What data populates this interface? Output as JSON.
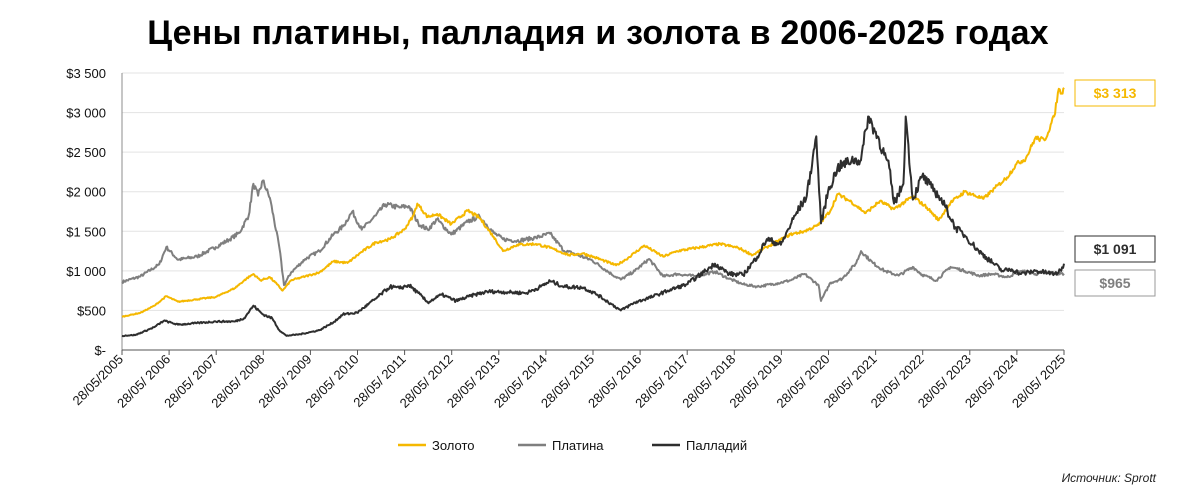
{
  "title": "Цены платины, палладия и золота в 2006-2025 годах",
  "source": "Источник: Sprott",
  "colors": {
    "gold": "#F5B800",
    "platinum": "#7F7F7F",
    "palladium": "#2E2E2E",
    "grid": "#E3E3E3"
  },
  "chart_data": {
    "type": "line",
    "title": "Цены платины, палладия и золота в 2006-2025 годах",
    "ylim": [
      0,
      3500
    ],
    "y_ticks": [
      {
        "value": 0,
        "label": "$-"
      },
      {
        "value": 500,
        "label": "$500"
      },
      {
        "value": 1000,
        "label": "$1 000"
      },
      {
        "value": 1500,
        "label": "$1 500"
      },
      {
        "value": 2000,
        "label": "$2 000"
      },
      {
        "value": 2500,
        "label": "$2 500"
      },
      {
        "value": 3000,
        "label": "$3 000"
      },
      {
        "value": 3500,
        "label": "$3 500"
      }
    ],
    "xlim": [
      2005.41,
      2025.41
    ],
    "x_ticks": [
      {
        "value": 2005.41,
        "label": "28/05/2005"
      },
      {
        "value": 2006.41,
        "label": "28/05/ 2006"
      },
      {
        "value": 2007.41,
        "label": "28/05/ 2007"
      },
      {
        "value": 2008.41,
        "label": "28/05/ 2008"
      },
      {
        "value": 2009.41,
        "label": "28/05/ 2009"
      },
      {
        "value": 2010.41,
        "label": "28/05/ 2010"
      },
      {
        "value": 2011.41,
        "label": "28/05/ 2011"
      },
      {
        "value": 2012.41,
        "label": "28/05/ 2012"
      },
      {
        "value": 2013.41,
        "label": "28/05/ 2013"
      },
      {
        "value": 2014.41,
        "label": "28/05/ 2014"
      },
      {
        "value": 2015.41,
        "label": "28/05/ 2015"
      },
      {
        "value": 2016.41,
        "label": "28/05/ 2016"
      },
      {
        "value": 2017.41,
        "label": "28/05/ 2017"
      },
      {
        "value": 2018.41,
        "label": "28/05/ 2018"
      },
      {
        "value": 2019.41,
        "label": "28/05/ 2019"
      },
      {
        "value": 2020.41,
        "label": "28/05/ 2020"
      },
      {
        "value": 2021.41,
        "label": "28/05/ 2021"
      },
      {
        "value": 2022.41,
        "label": "28/05/ 2022"
      },
      {
        "value": 2023.41,
        "label": "28/05/ 2023"
      },
      {
        "value": 2024.41,
        "label": "28/05/ 2024"
      },
      {
        "value": 2025.41,
        "label": "28/05/ 2025"
      }
    ],
    "grid": true,
    "legend_position": "bottom",
    "series": [
      {
        "name": "Золото",
        "color": "#F5B800",
        "end_label": "$3 313",
        "points": [
          [
            2005.41,
            420
          ],
          [
            2005.8,
            470
          ],
          [
            2006.1,
            560
          ],
          [
            2006.35,
            680
          ],
          [
            2006.6,
            610
          ],
          [
            2007.0,
            640
          ],
          [
            2007.4,
            670
          ],
          [
            2007.8,
            780
          ],
          [
            2008.05,
            900
          ],
          [
            2008.2,
            960
          ],
          [
            2008.35,
            880
          ],
          [
            2008.55,
            920
          ],
          [
            2008.7,
            830
          ],
          [
            2008.82,
            750
          ],
          [
            2009.0,
            880
          ],
          [
            2009.3,
            930
          ],
          [
            2009.6,
            980
          ],
          [
            2009.9,
            1120
          ],
          [
            2010.2,
            1100
          ],
          [
            2010.5,
            1240
          ],
          [
            2010.8,
            1360
          ],
          [
            2011.1,
            1400
          ],
          [
            2011.4,
            1520
          ],
          [
            2011.6,
            1700
          ],
          [
            2011.68,
            1850
          ],
          [
            2011.9,
            1680
          ],
          [
            2012.1,
            1720
          ],
          [
            2012.4,
            1590
          ],
          [
            2012.75,
            1760
          ],
          [
            2013.0,
            1670
          ],
          [
            2013.3,
            1430
          ],
          [
            2013.5,
            1250
          ],
          [
            2013.8,
            1330
          ],
          [
            2014.2,
            1340
          ],
          [
            2014.5,
            1290
          ],
          [
            2014.9,
            1200
          ],
          [
            2015.2,
            1220
          ],
          [
            2015.5,
            1160
          ],
          [
            2015.9,
            1070
          ],
          [
            2016.1,
            1140
          ],
          [
            2016.5,
            1320
          ],
          [
            2016.9,
            1180
          ],
          [
            2017.2,
            1250
          ],
          [
            2017.7,
            1300
          ],
          [
            2018.1,
            1340
          ],
          [
            2018.5,
            1290
          ],
          [
            2018.8,
            1200
          ],
          [
            2019.1,
            1300
          ],
          [
            2019.6,
            1460
          ],
          [
            2019.9,
            1500
          ],
          [
            2020.2,
            1580
          ],
          [
            2020.45,
            1760
          ],
          [
            2020.6,
            1970
          ],
          [
            2020.9,
            1870
          ],
          [
            2021.2,
            1730
          ],
          [
            2021.5,
            1880
          ],
          [
            2021.8,
            1780
          ],
          [
            2022.2,
            1940
          ],
          [
            2022.5,
            1800
          ],
          [
            2022.75,
            1640
          ],
          [
            2023.0,
            1860
          ],
          [
            2023.3,
            2000
          ],
          [
            2023.7,
            1910
          ],
          [
            2023.95,
            2050
          ],
          [
            2024.2,
            2180
          ],
          [
            2024.4,
            2350
          ],
          [
            2024.6,
            2420
          ],
          [
            2024.8,
            2680
          ],
          [
            2025.0,
            2650
          ],
          [
            2025.2,
            2950
          ],
          [
            2025.3,
            3300
          ],
          [
            2025.38,
            3240
          ],
          [
            2025.41,
            3313
          ]
        ]
      },
      {
        "name": "Платина",
        "color": "#7F7F7F",
        "end_label": "$965",
        "points": [
          [
            2005.41,
            860
          ],
          [
            2005.8,
            930
          ],
          [
            2006.2,
            1080
          ],
          [
            2006.35,
            1300
          ],
          [
            2006.6,
            1140
          ],
          [
            2007.0,
            1180
          ],
          [
            2007.4,
            1300
          ],
          [
            2007.7,
            1400
          ],
          [
            2007.9,
            1480
          ],
          [
            2008.1,
            1700
          ],
          [
            2008.2,
            2100
          ],
          [
            2008.3,
            1950
          ],
          [
            2008.4,
            2140
          ],
          [
            2008.55,
            1920
          ],
          [
            2008.75,
            1300
          ],
          [
            2008.85,
            820
          ],
          [
            2009.0,
            980
          ],
          [
            2009.3,
            1150
          ],
          [
            2009.6,
            1250
          ],
          [
            2009.9,
            1460
          ],
          [
            2010.1,
            1560
          ],
          [
            2010.3,
            1750
          ],
          [
            2010.5,
            1520
          ],
          [
            2010.8,
            1700
          ],
          [
            2011.0,
            1840
          ],
          [
            2011.3,
            1800
          ],
          [
            2011.5,
            1820
          ],
          [
            2011.7,
            1600
          ],
          [
            2011.9,
            1520
          ],
          [
            2012.1,
            1650
          ],
          [
            2012.4,
            1460
          ],
          [
            2012.75,
            1620
          ],
          [
            2013.0,
            1690
          ],
          [
            2013.3,
            1480
          ],
          [
            2013.5,
            1400
          ],
          [
            2013.8,
            1380
          ],
          [
            2014.2,
            1420
          ],
          [
            2014.5,
            1470
          ],
          [
            2014.8,
            1250
          ],
          [
            2015.0,
            1220
          ],
          [
            2015.4,
            1130
          ],
          [
            2015.8,
            960
          ],
          [
            2016.0,
            890
          ],
          [
            2016.3,
            1000
          ],
          [
            2016.6,
            1150
          ],
          [
            2016.9,
            930
          ],
          [
            2017.2,
            960
          ],
          [
            2017.6,
            930
          ],
          [
            2018.0,
            990
          ],
          [
            2018.3,
            900
          ],
          [
            2018.6,
            830
          ],
          [
            2018.9,
            800
          ],
          [
            2019.3,
            840
          ],
          [
            2019.6,
            880
          ],
          [
            2019.9,
            960
          ],
          [
            2020.2,
            820
          ],
          [
            2020.25,
            620
          ],
          [
            2020.45,
            850
          ],
          [
            2020.7,
            900
          ],
          [
            2021.0,
            1100
          ],
          [
            2021.1,
            1250
          ],
          [
            2021.35,
            1100
          ],
          [
            2021.6,
            1000
          ],
          [
            2021.9,
            940
          ],
          [
            2022.2,
            1050
          ],
          [
            2022.4,
            950
          ],
          [
            2022.7,
            880
          ],
          [
            2023.0,
            1050
          ],
          [
            2023.3,
            1000
          ],
          [
            2023.6,
            940
          ],
          [
            2023.9,
            960
          ],
          [
            2024.2,
            920
          ],
          [
            2024.5,
            1000
          ],
          [
            2024.8,
            960
          ],
          [
            2025.1,
            980
          ],
          [
            2025.3,
            960
          ],
          [
            2025.41,
            965
          ]
        ]
      },
      {
        "name": "Палладий",
        "color": "#2E2E2E",
        "end_label": "$1 091",
        "points": [
          [
            2005.41,
            180
          ],
          [
            2005.7,
            190
          ],
          [
            2006.1,
            290
          ],
          [
            2006.3,
            370
          ],
          [
            2006.6,
            320
          ],
          [
            2007.0,
            340
          ],
          [
            2007.4,
            360
          ],
          [
            2007.8,
            360
          ],
          [
            2008.0,
            400
          ],
          [
            2008.2,
            560
          ],
          [
            2008.4,
            450
          ],
          [
            2008.6,
            400
          ],
          [
            2008.75,
            250
          ],
          [
            2008.9,
            180
          ],
          [
            2009.2,
            200
          ],
          [
            2009.6,
            250
          ],
          [
            2009.9,
            350
          ],
          [
            2010.1,
            450
          ],
          [
            2010.4,
            470
          ],
          [
            2010.8,
            650
          ],
          [
            2011.1,
            800
          ],
          [
            2011.3,
            780
          ],
          [
            2011.5,
            820
          ],
          [
            2011.7,
            720
          ],
          [
            2011.9,
            600
          ],
          [
            2012.2,
            700
          ],
          [
            2012.5,
            620
          ],
          [
            2012.9,
            700
          ],
          [
            2013.2,
            740
          ],
          [
            2013.6,
            730
          ],
          [
            2014.0,
            720
          ],
          [
            2014.3,
            800
          ],
          [
            2014.5,
            870
          ],
          [
            2014.8,
            800
          ],
          [
            2015.2,
            790
          ],
          [
            2015.5,
            700
          ],
          [
            2015.8,
            580
          ],
          [
            2016.0,
            500
          ],
          [
            2016.3,
            600
          ],
          [
            2016.7,
            680
          ],
          [
            2017.0,
            750
          ],
          [
            2017.4,
            830
          ],
          [
            2017.8,
            1000
          ],
          [
            2018.0,
            1090
          ],
          [
            2018.3,
            960
          ],
          [
            2018.6,
            950
          ],
          [
            2018.9,
            1180
          ],
          [
            2019.1,
            1400
          ],
          [
            2019.4,
            1330
          ],
          [
            2019.7,
            1700
          ],
          [
            2019.95,
            1950
          ],
          [
            2020.15,
            2700
          ],
          [
            2020.25,
            1600
          ],
          [
            2020.4,
            2000
          ],
          [
            2020.6,
            2300
          ],
          [
            2020.9,
            2400
          ],
          [
            2021.1,
            2400
          ],
          [
            2021.25,
            2950
          ],
          [
            2021.45,
            2700
          ],
          [
            2021.7,
            2300
          ],
          [
            2021.8,
            1850
          ],
          [
            2022.0,
            2100
          ],
          [
            2022.05,
            2950
          ],
          [
            2022.2,
            1900
          ],
          [
            2022.4,
            2200
          ],
          [
            2022.6,
            2050
          ],
          [
            2022.75,
            1950
          ],
          [
            2022.9,
            1800
          ],
          [
            2023.1,
            1550
          ],
          [
            2023.3,
            1450
          ],
          [
            2023.6,
            1250
          ],
          [
            2023.9,
            1100
          ],
          [
            2024.1,
            1000
          ],
          [
            2024.3,
            1020
          ],
          [
            2024.5,
            960
          ],
          [
            2024.8,
            1000
          ],
          [
            2025.0,
            980
          ],
          [
            2025.2,
            960
          ],
          [
            2025.35,
            1000
          ],
          [
            2025.41,
            1091
          ]
        ]
      }
    ]
  }
}
